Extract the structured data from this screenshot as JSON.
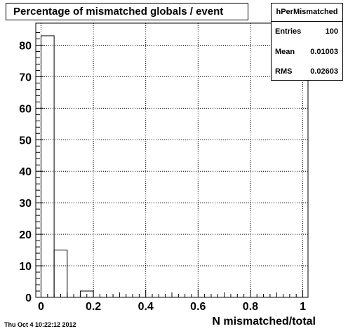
{
  "chart_data": {
    "type": "bar",
    "title": "Percentage of mismatched globals / event",
    "xlabel": "N mismatched/total",
    "ylabel": "",
    "xlim": [
      -0.02,
      1.02
    ],
    "ylim": [
      0,
      87
    ],
    "bin_width": 0.05,
    "bins": [
      {
        "x0": 0.0,
        "x1": 0.05,
        "value": 83
      },
      {
        "x0": 0.05,
        "x1": 0.1,
        "value": 15
      },
      {
        "x0": 0.1,
        "x1": 0.15,
        "value": 0
      },
      {
        "x0": 0.15,
        "x1": 0.2,
        "value": 2
      }
    ],
    "x_ticks": [
      "0",
      "0.2",
      "0.4",
      "0.6",
      "0.8",
      "1"
    ],
    "x_tick_values": [
      0,
      0.2,
      0.4,
      0.6,
      0.8,
      1
    ],
    "y_ticks": [
      "0",
      "10",
      "20",
      "30",
      "40",
      "50",
      "60",
      "70",
      "80"
    ],
    "y_tick_values": [
      0,
      10,
      20,
      30,
      40,
      50,
      60,
      70,
      80
    ],
    "grid": true,
    "legend": "none"
  },
  "stats": {
    "name": "hPerMismatched",
    "entries_label": "Entries",
    "entries_value": "100",
    "mean_label": "Mean",
    "mean_value": "0.01003",
    "rms_label": "RMS",
    "rms_value": "0.02603"
  },
  "timestamp": "Thu Oct  4 10:22:12 2012"
}
